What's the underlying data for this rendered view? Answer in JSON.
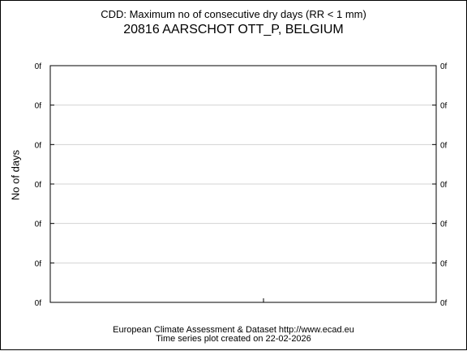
{
  "chart_data": {
    "type": "line",
    "title": "CDD: Maximum no of consecutive dry days (RR < 1 mm)",
    "subtitle": "20816 AARSCHOT OTT_P, BELGIUM",
    "ylabel": "No of days",
    "xlabel": "",
    "y_tick_labels": [
      "0f",
      "0f",
      "0f",
      "0f",
      "0f",
      "0f",
      "0f"
    ],
    "x_tick_labels": [],
    "series": [],
    "grid": true,
    "legend": "none"
  },
  "footer": {
    "line1": "European Climate Assessment & Dataset  http://www.ecad.eu",
    "line2": "Time series plot created on 22-02-2026"
  },
  "colors": {
    "grid": "#d3d3d3",
    "axes": "#000000"
  }
}
